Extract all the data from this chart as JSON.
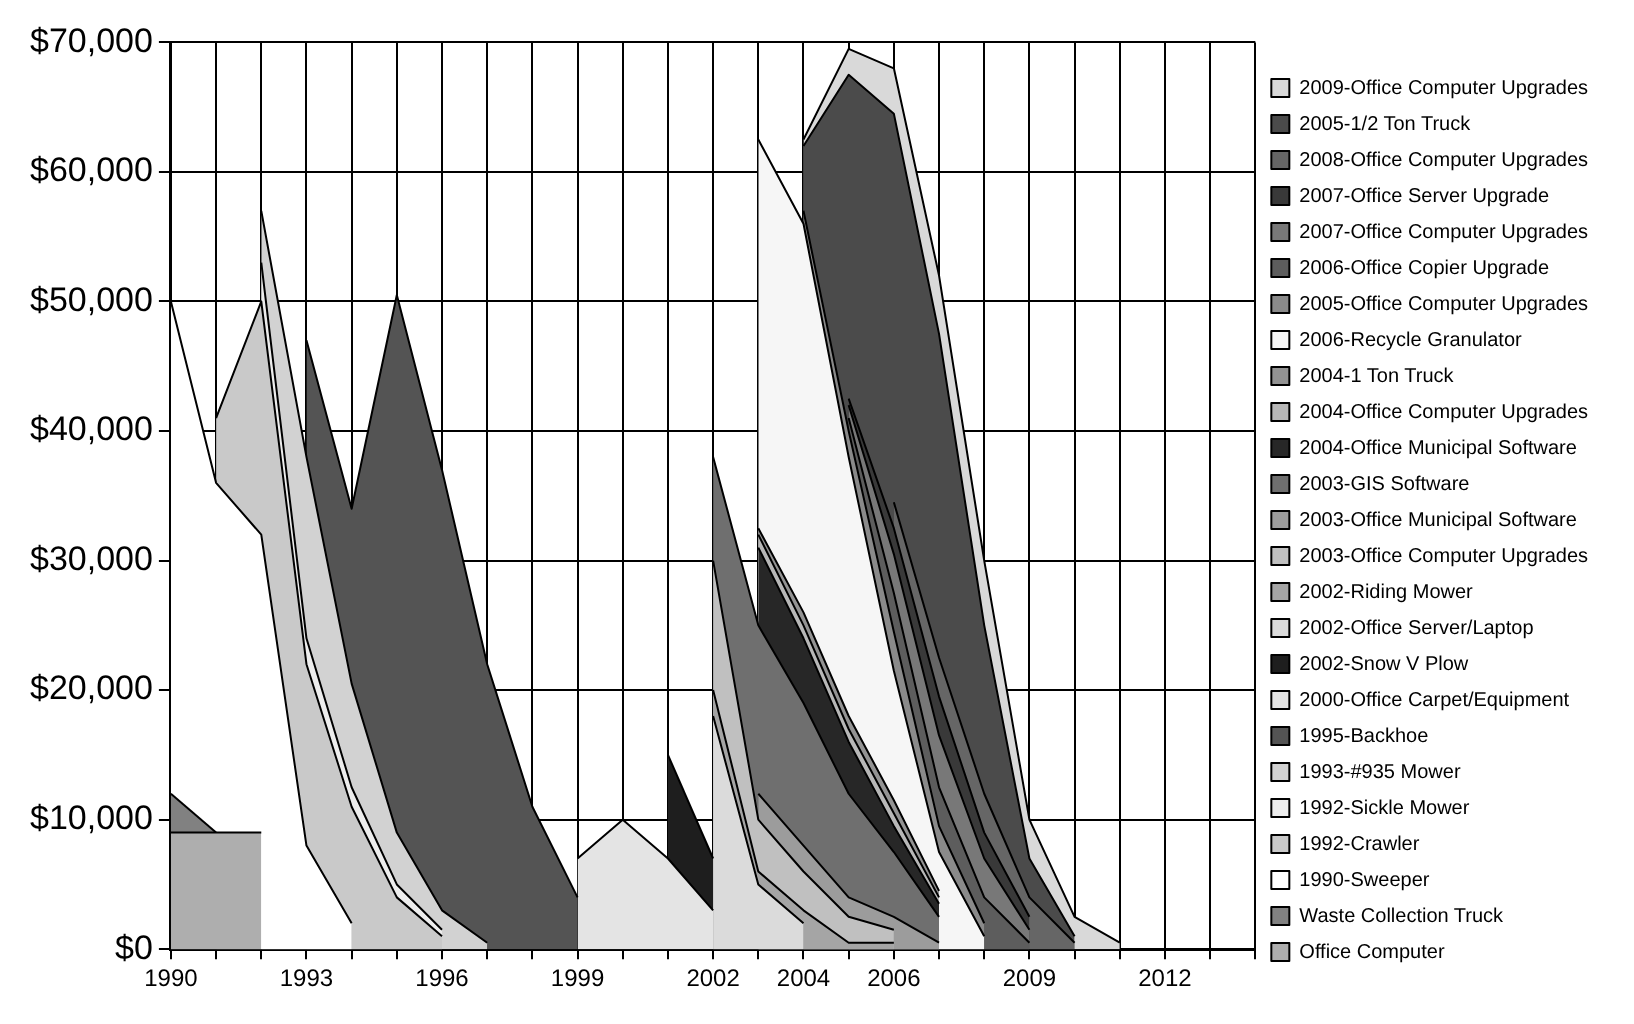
{
  "chart_data": {
    "type": "area",
    "stacked": true,
    "grid": true,
    "legend": "right",
    "categories": [
      "1990",
      null,
      null,
      "1993",
      null,
      null,
      "1996",
      null,
      null,
      "1999",
      null,
      null,
      "2002",
      null,
      "2004",
      null,
      "2006",
      null,
      null,
      "2009",
      null,
      null,
      "2012",
      null,
      null
    ],
    "ylim": [
      0,
      70000
    ],
    "yticks": [
      {
        "value": 0,
        "label": "$0"
      },
      {
        "value": 10000,
        "label": "$10,000"
      },
      {
        "value": 20000,
        "label": "$20,000"
      },
      {
        "value": 30000,
        "label": "$30,000"
      },
      {
        "value": 40000,
        "label": "$40,000"
      },
      {
        "value": 50000,
        "label": "$50,000"
      },
      {
        "value": 60000,
        "label": "$60,000"
      },
      {
        "value": 70000,
        "label": "$70,000"
      }
    ],
    "series": [
      {
        "name": "Office Computer",
        "color": "#aeaeae",
        "values": [
          9000,
          9000,
          9000,
          null,
          null,
          null,
          null,
          null,
          null,
          null,
          null,
          null,
          null,
          null,
          null,
          null,
          null,
          null,
          null,
          null,
          null,
          null,
          null,
          null,
          null
        ]
      },
      {
        "name": "Waste Collection Truck",
        "color": "#818181",
        "values": [
          3000,
          0,
          null,
          null,
          null,
          null,
          null,
          null,
          null,
          null,
          null,
          null,
          null,
          null,
          null,
          null,
          null,
          null,
          null,
          null,
          null,
          null,
          null,
          null,
          null
        ]
      },
      {
        "name": "1990-Sweeper",
        "color": "#ffffff",
        "values": [
          38000,
          27000,
          23000,
          8000,
          2000,
          null,
          null,
          null,
          null,
          null,
          null,
          null,
          null,
          null,
          null,
          null,
          null,
          null,
          null,
          null,
          null,
          null,
          null,
          null,
          null
        ]
      },
      {
        "name": "1992-Crawler",
        "color": "#c9c9c9",
        "values": [
          null,
          5000,
          18000,
          14000,
          9000,
          4000,
          1000,
          null,
          null,
          null,
          null,
          null,
          null,
          null,
          null,
          null,
          null,
          null,
          null,
          null,
          null,
          null,
          null,
          null,
          null
        ]
      },
      {
        "name": "1992-Sickle Mower",
        "color": "#ededed",
        "values": [
          null,
          null,
          3000,
          2000,
          1500,
          1000,
          500,
          null,
          null,
          null,
          null,
          null,
          null,
          null,
          null,
          null,
          null,
          null,
          null,
          null,
          null,
          null,
          null,
          null,
          null
        ]
      },
      {
        "name": "1993-#935 Mower",
        "color": "#d2d2d2",
        "values": [
          null,
          null,
          4000,
          14000,
          8000,
          4000,
          1500,
          500,
          null,
          null,
          null,
          null,
          null,
          null,
          null,
          null,
          null,
          null,
          null,
          null,
          null,
          null,
          null,
          null,
          null
        ]
      },
      {
        "name": "1995-Backhoe",
        "color": "#545454",
        "values": [
          null,
          null,
          null,
          9000,
          13500,
          41500,
          34000,
          21500,
          11000,
          4000,
          null,
          null,
          null,
          null,
          null,
          null,
          null,
          null,
          null,
          null,
          null,
          null,
          null,
          null,
          null
        ]
      },
      {
        "name": "2000-Office Carpet/Equipment",
        "color": "#e4e4e4",
        "values": [
          null,
          null,
          null,
          null,
          null,
          null,
          null,
          null,
          null,
          3000,
          10000,
          7000,
          3000,
          null,
          null,
          null,
          null,
          null,
          null,
          null,
          null,
          null,
          null,
          null,
          null
        ]
      },
      {
        "name": "2002-Snow V Plow",
        "color": "#1e1e1e",
        "values": [
          null,
          null,
          null,
          null,
          null,
          null,
          null,
          null,
          null,
          null,
          null,
          8000,
          4000,
          null,
          null,
          null,
          null,
          null,
          null,
          null,
          null,
          null,
          null,
          null,
          null
        ]
      },
      {
        "name": "2002-Office Server/Laptop",
        "color": "#dbdbdb",
        "values": [
          null,
          null,
          null,
          null,
          null,
          null,
          null,
          null,
          null,
          null,
          null,
          null,
          11000,
          5000,
          2000,
          null,
          null,
          null,
          null,
          null,
          null,
          null,
          null,
          null,
          null
        ]
      },
      {
        "name": "2002-Riding Mower",
        "color": "#a5a5a5",
        "values": [
          null,
          null,
          null,
          null,
          null,
          null,
          null,
          null,
          null,
          null,
          null,
          null,
          2000,
          1000,
          1000,
          500,
          500,
          null,
          null,
          null,
          null,
          null,
          null,
          null,
          null
        ]
      },
      {
        "name": "2003-Office Computer Upgrades",
        "color": "#c0c0c0",
        "values": [
          null,
          null,
          null,
          null,
          null,
          null,
          null,
          null,
          null,
          null,
          null,
          null,
          10000,
          4000,
          3000,
          2000,
          1000,
          null,
          null,
          null,
          null,
          null,
          null,
          null,
          null
        ]
      },
      {
        "name": "2003-Office Municipal Software",
        "color": "#9c9c9c",
        "values": [
          null,
          null,
          null,
          null,
          null,
          null,
          null,
          null,
          null,
          null,
          null,
          null,
          null,
          2000,
          2000,
          1500,
          1000,
          500,
          null,
          null,
          null,
          null,
          null,
          null,
          null
        ]
      },
      {
        "name": "2003-GIS Software",
        "color": "#6f6f6f",
        "values": [
          null,
          null,
          null,
          null,
          null,
          null,
          null,
          null,
          null,
          null,
          null,
          null,
          8000,
          13000,
          11000,
          8000,
          5000,
          2000,
          null,
          null,
          null,
          null,
          null,
          null,
          null
        ]
      },
      {
        "name": "2004-Office Municipal Software",
        "color": "#272727",
        "values": [
          null,
          null,
          null,
          null,
          null,
          null,
          null,
          null,
          null,
          null,
          null,
          null,
          null,
          6000,
          5000,
          4000,
          2000,
          1000,
          null,
          null,
          null,
          null,
          null,
          null,
          null
        ]
      },
      {
        "name": "2004-Office Computer Upgrades",
        "color": "#b7b7b7",
        "values": [
          null,
          null,
          null,
          null,
          null,
          null,
          null,
          null,
          null,
          null,
          null,
          null,
          null,
          1000,
          1000,
          1000,
          1000,
          500,
          null,
          null,
          null,
          null,
          null,
          null,
          null
        ]
      },
      {
        "name": "2004-1 Ton Truck",
        "color": "#939393",
        "values": [
          null,
          null,
          null,
          null,
          null,
          null,
          null,
          null,
          null,
          null,
          null,
          null,
          null,
          500,
          1000,
          1000,
          1000,
          500,
          null,
          null,
          null,
          null,
          null,
          null,
          null
        ]
      },
      {
        "name": "2006-Recycle Granulator",
        "color": "#f6f6f6",
        "values": [
          null,
          null,
          null,
          null,
          null,
          null,
          null,
          null,
          null,
          null,
          null,
          null,
          null,
          30000,
          30000,
          20000,
          10000,
          3000,
          1000,
          null,
          null,
          null,
          null,
          null,
          null
        ]
      },
      {
        "name": "2005-Office Computer Upgrades",
        "color": "#8a8a8a",
        "values": [
          null,
          null,
          null,
          null,
          null,
          null,
          null,
          null,
          null,
          null,
          null,
          null,
          null,
          null,
          1000,
          2000,
          3000,
          2000,
          1000,
          null,
          null,
          null,
          null,
          null,
          null
        ]
      },
      {
        "name": "2006-Office Copier Upgrade",
        "color": "#5d5d5d",
        "values": [
          null,
          null,
          null,
          null,
          null,
          null,
          null,
          null,
          null,
          null,
          null,
          null,
          null,
          null,
          null,
          1000,
          3000,
          3000,
          2000,
          500,
          null,
          null,
          null,
          null,
          null
        ]
      },
      {
        "name": "2007-Office Computer Upgrades",
        "color": "#787878",
        "values": [
          null,
          null,
          null,
          null,
          null,
          null,
          null,
          null,
          null,
          null,
          null,
          null,
          null,
          null,
          null,
          1000,
          3000,
          4000,
          3000,
          1000,
          null,
          null,
          null,
          null,
          null
        ]
      },
      {
        "name": "2007-Office Server Upgrade",
        "color": "#393939",
        "values": [
          null,
          null,
          null,
          null,
          null,
          null,
          null,
          null,
          null,
          null,
          null,
          null,
          null,
          null,
          null,
          500,
          2000,
          3000,
          2000,
          1000,
          null,
          null,
          null,
          null,
          null
        ]
      },
      {
        "name": "2008-Office Computer Upgrades",
        "color": "#666666",
        "values": [
          null,
          null,
          null,
          null,
          null,
          null,
          null,
          null,
          null,
          null,
          null,
          null,
          null,
          null,
          null,
          null,
          2000,
          3000,
          3000,
          1500,
          500,
          null,
          null,
          null,
          null
        ]
      },
      {
        "name": "2005-1/2 Ton Truck",
        "color": "#4b4b4b",
        "values": [
          null,
          null,
          null,
          null,
          null,
          null,
          null,
          null,
          null,
          null,
          null,
          null,
          null,
          null,
          5000,
          25000,
          30000,
          25000,
          13000,
          3000,
          500,
          null,
          null,
          null,
          null
        ]
      },
      {
        "name": "2009-Office Computer Upgrades",
        "color": "#d9d9d9",
        "values": [
          null,
          null,
          null,
          null,
          null,
          null,
          null,
          null,
          null,
          null,
          null,
          null,
          null,
          null,
          500,
          2000,
          3500,
          4500,
          5000,
          3000,
          1500,
          500,
          null,
          null,
          null
        ]
      }
    ]
  }
}
